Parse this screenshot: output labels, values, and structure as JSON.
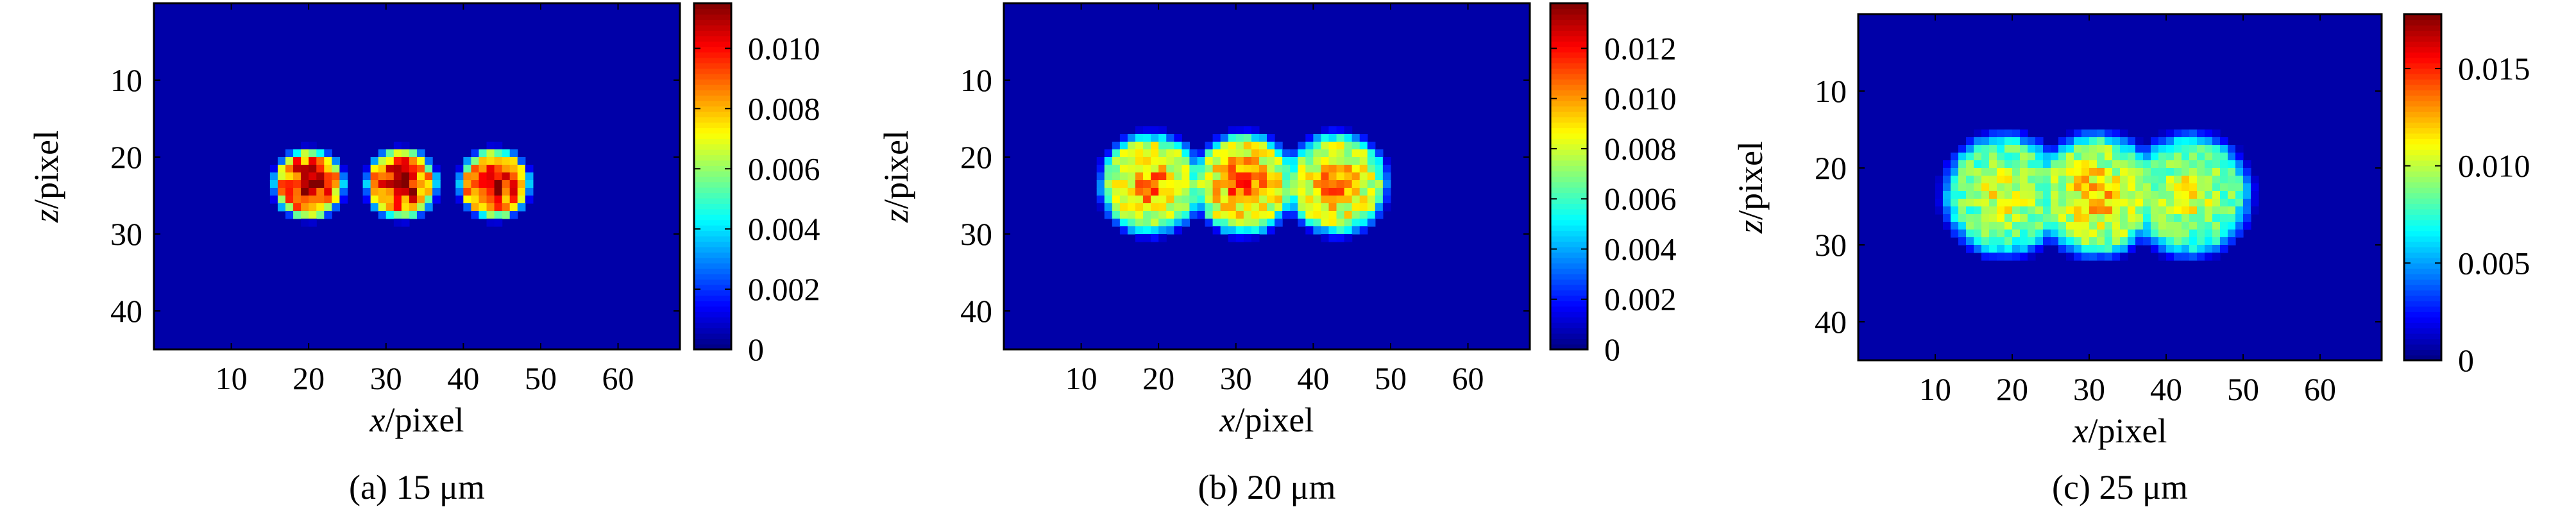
{
  "chart_data": [
    {
      "type": "heatmap",
      "caption": "(a) 15 μm",
      "xlabel": {
        "var": "x",
        "unit": "/pixel"
      },
      "ylabel": {
        "var": "z",
        "unit": "/pixel"
      },
      "xlim": [
        0,
        68
      ],
      "ylim": [
        0,
        45
      ],
      "xticks": [
        10,
        20,
        30,
        40,
        50,
        60
      ],
      "yticks": [
        10,
        20,
        30,
        40
      ],
      "colorbar": {
        "min": 0,
        "max": 0.0115,
        "colormap": "jet",
        "ticks": [
          0,
          0.002,
          0.004,
          0.006,
          0.008,
          0.01
        ],
        "tick_labels": [
          "0",
          "0.002",
          "0.004",
          "0.006",
          "0.008",
          "0.010"
        ]
      },
      "blobs": [
        {
          "cx": 20,
          "cz": 23.5,
          "r": 4.4,
          "peak": 0.0115
        },
        {
          "cx": 32,
          "cz": 23.5,
          "r": 4.4,
          "peak": 0.0115
        },
        {
          "cx": 44,
          "cz": 23.5,
          "r": 4.4,
          "peak": 0.0115
        }
      ]
    },
    {
      "type": "heatmap",
      "caption": "(b) 20 μm",
      "xlabel": {
        "var": "x",
        "unit": "/pixel"
      },
      "ylabel": {
        "var": "z",
        "unit": "/pixel"
      },
      "xlim": [
        0,
        68
      ],
      "ylim": [
        0,
        45
      ],
      "xticks": [
        10,
        20,
        30,
        40,
        50,
        60
      ],
      "yticks": [
        10,
        20,
        30,
        40
      ],
      "colorbar": {
        "min": 0,
        "max": 0.0138,
        "colormap": "jet",
        "ticks": [
          0,
          0.002,
          0.004,
          0.006,
          0.008,
          0.01,
          0.012
        ],
        "tick_labels": [
          "0",
          "0.002",
          "0.004",
          "0.006",
          "0.008",
          "0.010",
          "0.012"
        ]
      },
      "blobs": [
        {
          "cx": 19,
          "cz": 23.5,
          "r": 6.4,
          "peak": 0.0105
        },
        {
          "cx": 31,
          "cz": 23.5,
          "r": 6.4,
          "peak": 0.011
        },
        {
          "cx": 43,
          "cz": 23.5,
          "r": 6.4,
          "peak": 0.0105
        }
      ]
    },
    {
      "type": "heatmap",
      "caption": "(c) 25 μm",
      "xlabel": {
        "var": "x",
        "unit": "/pixel"
      },
      "ylabel": {
        "var": "z",
        "unit": "/pixel"
      },
      "xlim": [
        0,
        68
      ],
      "ylim": [
        0,
        45
      ],
      "xticks": [
        10,
        20,
        30,
        40,
        50,
        60
      ],
      "yticks": [
        10,
        20,
        30,
        40
      ],
      "colorbar": {
        "min": 0,
        "max": 0.0178,
        "colormap": "jet",
        "ticks": [
          0,
          0.005,
          0.01,
          0.015
        ],
        "tick_labels": [
          "0",
          "0.005",
          "0.010",
          "0.015"
        ]
      },
      "blobs": [
        {
          "cx": 19,
          "cz": 23.5,
          "r": 7.8,
          "peak": 0.011
        },
        {
          "cx": 31,
          "cz": 23.5,
          "r": 7.8,
          "peak": 0.0125
        },
        {
          "cx": 43,
          "cz": 23.5,
          "r": 7.8,
          "peak": 0.011
        }
      ]
    }
  ]
}
